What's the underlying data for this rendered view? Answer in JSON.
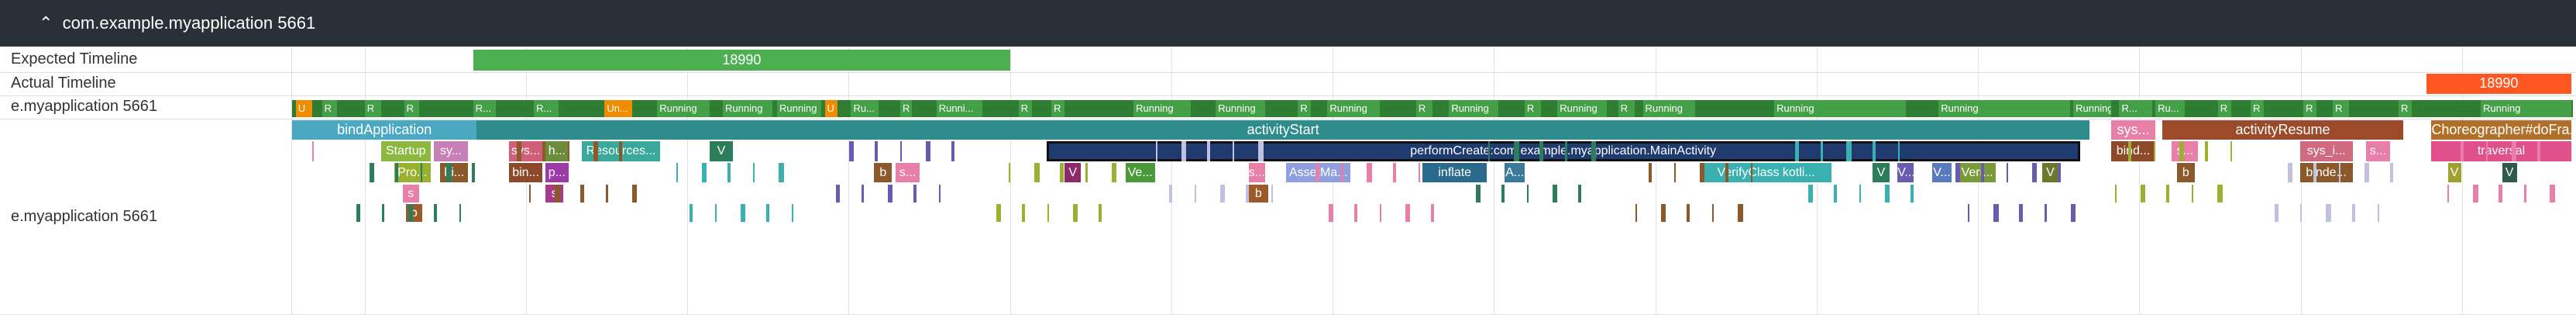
{
  "header": {
    "title": "com.example.myapplication 5661"
  },
  "tracks": [
    {
      "label": "Expected Timeline",
      "slices": [
        {
          "label": "18990"
        }
      ]
    },
    {
      "label": "Actual Timeline",
      "slices": [
        {
          "label": "18990"
        }
      ]
    },
    {
      "label": "e.myapplication 5661",
      "states": [
        "U",
        "R",
        "R",
        "R",
        "R...",
        "R...",
        "Un...",
        "Running",
        "Running",
        "Running",
        "U",
        "Ru...",
        "R",
        "Runni...",
        "R",
        "R",
        "Running",
        "Running",
        "R",
        "Running",
        "R",
        "Running",
        "R",
        "Running",
        "R",
        "Running",
        "Running",
        "Running",
        "Running",
        "R...",
        "Ru...",
        "R",
        "R",
        "R",
        "R",
        "R",
        "Running"
      ]
    },
    {
      "label": "e.myapplication 5661",
      "slices": [
        {
          "label": "bindApplication"
        },
        {
          "label": "activityStart"
        },
        {
          "label": "sys..."
        },
        {
          "label": "activityResume"
        },
        {
          "label": "Choreographer#doFra..."
        },
        {
          "label": "Startup"
        },
        {
          "label": "sy..."
        },
        {
          "label": "sys..."
        },
        {
          "label": "h..."
        },
        {
          "label": "Resources..."
        },
        {
          "label": "V"
        },
        {
          "label": "performCreate:com.example.myapplication.MainActivity"
        },
        {
          "label": "bind..."
        },
        {
          "label": "s..."
        },
        {
          "label": "sys_i..."
        },
        {
          "label": "s..."
        },
        {
          "label": "traversal"
        },
        {
          "label": "Pro..."
        },
        {
          "label": "bi..."
        },
        {
          "label": "bin..."
        },
        {
          "label": "p..."
        },
        {
          "label": "b"
        },
        {
          "label": "s..."
        },
        {
          "label": "V"
        },
        {
          "label": "Ve..."
        },
        {
          "label": "s..."
        },
        {
          "label": "AssetMa..."
        },
        {
          "label": "inflate"
        },
        {
          "label": "A..."
        },
        {
          "label": "VerifyClass kotli..."
        },
        {
          "label": "V"
        },
        {
          "label": "V..."
        },
        {
          "label": "V..."
        },
        {
          "label": "Veri..."
        },
        {
          "label": "V"
        },
        {
          "label": "b"
        },
        {
          "label": "binde..."
        },
        {
          "label": "V"
        },
        {
          "label": "V"
        },
        {
          "label": "s"
        },
        {
          "label": "s"
        },
        {
          "label": "b"
        },
        {
          "label": "b"
        }
      ]
    }
  ]
}
